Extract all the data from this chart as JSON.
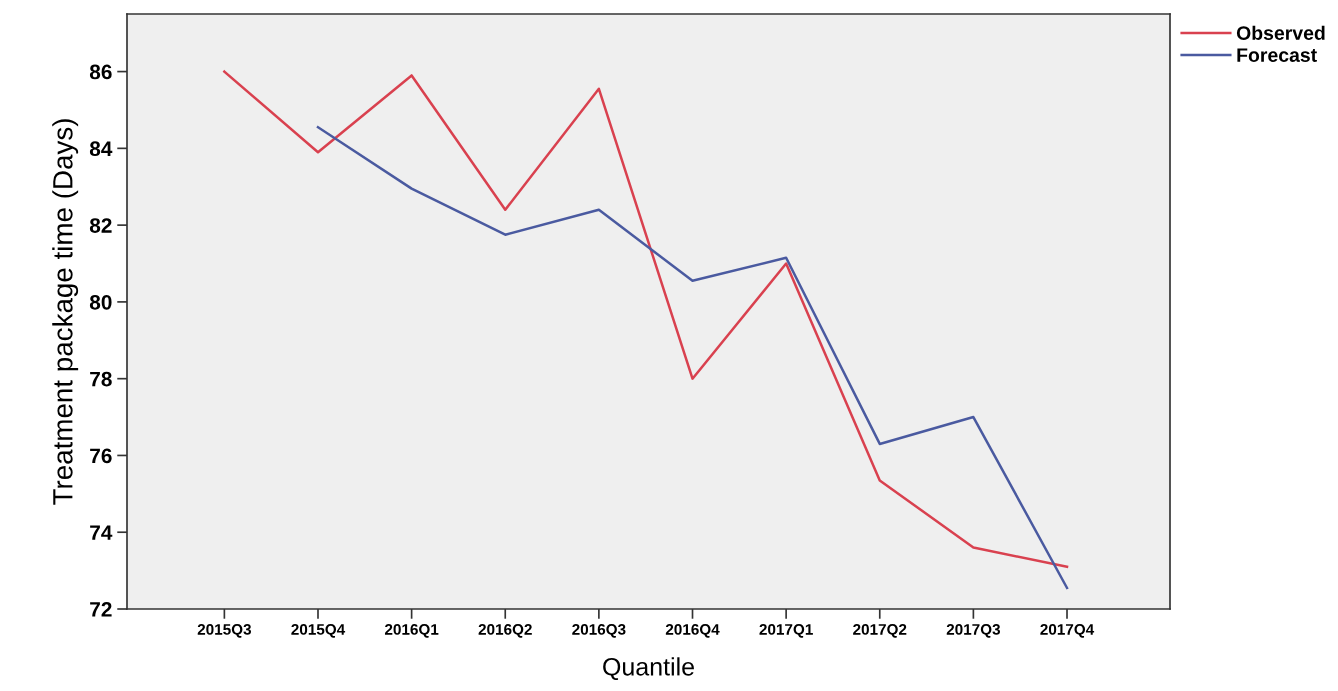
{
  "chart_data": {
    "type": "line",
    "xlabel": "Quantile",
    "ylabel": "Treatment package time (Days)",
    "categories": [
      "2015Q3",
      "2015Q4",
      "2016Q1",
      "2016Q2",
      "2016Q3",
      "2016Q4",
      "2017Q1",
      "2017Q2",
      "2017Q3",
      "2017Q4"
    ],
    "series": [
      {
        "name": "Observed",
        "color": "#d9414f",
        "values": [
          86.0,
          83.9,
          85.9,
          82.4,
          85.55,
          78.0,
          81.0,
          75.35,
          73.6,
          73.1
        ]
      },
      {
        "name": "Forecast",
        "color": "#4a5aa0",
        "values": [
          null,
          84.55,
          82.95,
          81.75,
          82.4,
          80.55,
          81.15,
          76.3,
          77.0,
          72.55
        ]
      }
    ],
    "ylim": [
      72,
      87.5
    ],
    "yticks": [
      72,
      74,
      76,
      78,
      80,
      82,
      84,
      86
    ],
    "grid": false,
    "legend": "top right",
    "marker": "none",
    "line_style": "solid"
  }
}
